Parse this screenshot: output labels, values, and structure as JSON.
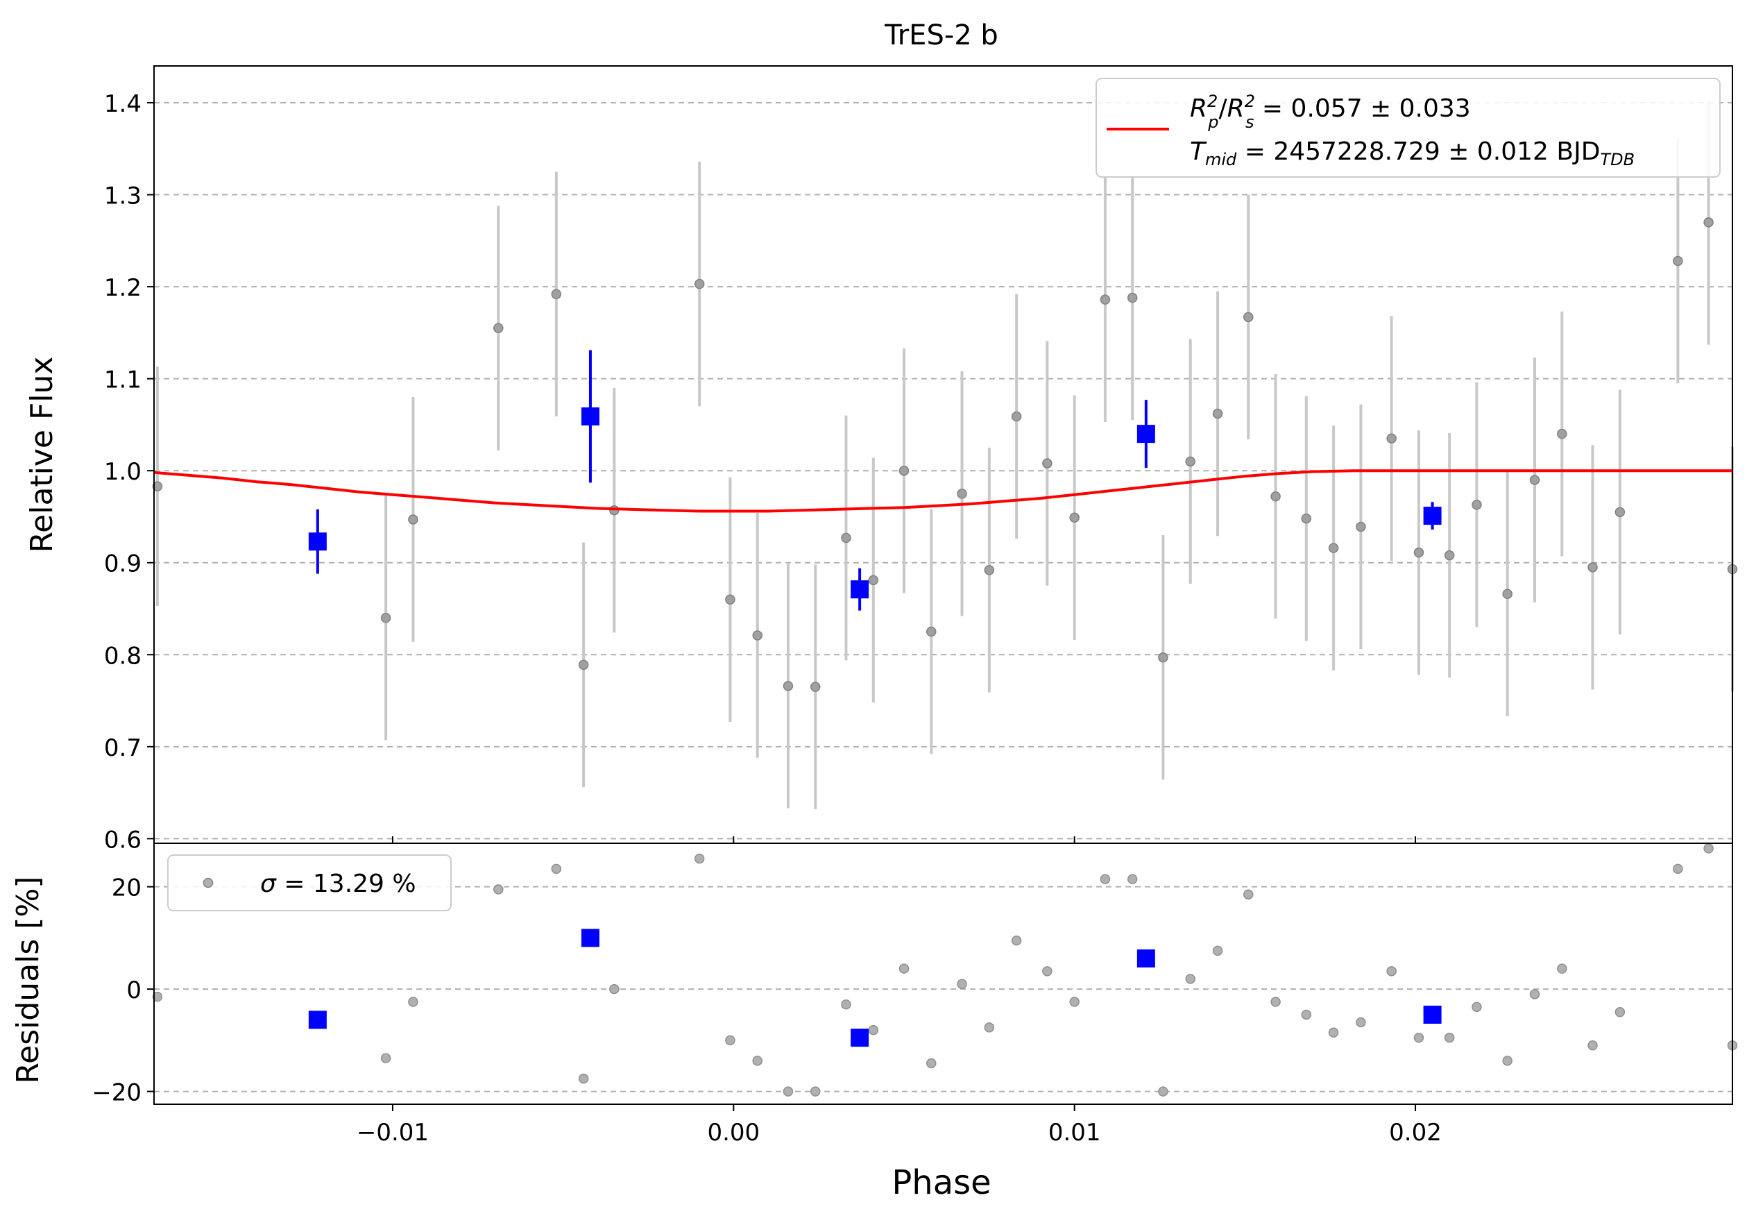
{
  "chart_data": [
    {
      "type": "scatter",
      "panel": "main",
      "title": "TrES-2 b",
      "xlabel": "Phase",
      "ylabel": "Relative Flux",
      "xlim": [
        -0.017,
        0.0293
      ],
      "ylim": [
        0.595,
        1.44
      ],
      "xticks": [
        -0.01,
        0.0,
        0.01,
        0.02
      ],
      "xtick_labels": [
        "−0.01",
        "0.00",
        "0.01",
        "0.02"
      ],
      "yticks": [
        0.6,
        0.7,
        0.8,
        0.9,
        1.0,
        1.1,
        1.2,
        1.3,
        1.4
      ],
      "ytick_labels": [
        "0.6",
        "0.7",
        "0.8",
        "0.9",
        "1.0",
        "1.1",
        "1.2",
        "1.3",
        "1.4"
      ],
      "grid": "horizontal dashed",
      "legend_position": "top-right",
      "legend": {
        "line1_html": "<tspan font-style=\"italic\">R</tspan><tspan font-style=\"italic\" font-size=\"24\" dy=\"-14\">2</tspan><tspan font-style=\"italic\" font-size=\"24\" dx=\"-14\" dy=\"30\">p</tspan><tspan dy=\"-16\">/</tspan><tspan font-style=\"italic\">R</tspan><tspan font-style=\"italic\" font-size=\"24\" dy=\"-14\">2</tspan><tspan font-style=\"italic\" font-size=\"24\" dx=\"-14\" dy=\"30\">s</tspan><tspan dy=\"-16\"> = 0.057 ± 0.033</tspan>",
        "line2_html": "<tspan font-style=\"italic\">T</tspan><tspan font-style=\"italic\" font-size=\"24\" dy=\"8\">mid</tspan><tspan dy=\"-8\"> = 2457228.729 ± 0.012 BJD</tspan><tspan font-style=\"italic\" font-size=\"24\" dy=\"8\">TDB</tspan>"
      },
      "colors": {
        "data": "#808080",
        "errorbar": "#c8c8c8",
        "binned": "#0000ff",
        "model": "#ff0000"
      },
      "raw_points": [
        {
          "x": -0.0169,
          "y": 0.983,
          "err": 0.13
        },
        {
          "x": -0.0102,
          "y": 0.84,
          "err": 0.133
        },
        {
          "x": -0.0094,
          "y": 0.947,
          "err": 0.133
        },
        {
          "x": -0.0069,
          "y": 1.155,
          "err": 0.133
        },
        {
          "x": -0.0052,
          "y": 1.192,
          "err": 0.133
        },
        {
          "x": -0.0044,
          "y": 0.789,
          "err": 0.133
        },
        {
          "x": -0.0035,
          "y": 0.957,
          "err": 0.133
        },
        {
          "x": -0.001,
          "y": 1.203,
          "err": 0.133
        },
        {
          "x": -0.0001,
          "y": 0.86,
          "err": 0.133
        },
        {
          "x": 0.0007,
          "y": 0.821,
          "err": 0.133
        },
        {
          "x": 0.0016,
          "y": 0.766,
          "err": 0.133
        },
        {
          "x": 0.0024,
          "y": 0.765,
          "err": 0.133
        },
        {
          "x": 0.0033,
          "y": 0.927,
          "err": 0.133
        },
        {
          "x": 0.0041,
          "y": 0.881,
          "err": 0.133
        },
        {
          "x": 0.005,
          "y": 1.0,
          "err": 0.133
        },
        {
          "x": 0.0058,
          "y": 0.825,
          "err": 0.133
        },
        {
          "x": 0.0067,
          "y": 0.975,
          "err": 0.133
        },
        {
          "x": 0.0075,
          "y": 0.892,
          "err": 0.133
        },
        {
          "x": 0.0083,
          "y": 1.059,
          "err": 0.133
        },
        {
          "x": 0.0092,
          "y": 1.008,
          "err": 0.133
        },
        {
          "x": 0.01,
          "y": 0.949,
          "err": 0.133
        },
        {
          "x": 0.0109,
          "y": 1.186,
          "err": 0.133
        },
        {
          "x": 0.0117,
          "y": 1.188,
          "err": 0.133
        },
        {
          "x": 0.0126,
          "y": 0.797,
          "err": 0.133
        },
        {
          "x": 0.0134,
          "y": 1.01,
          "err": 0.133
        },
        {
          "x": 0.0142,
          "y": 1.062,
          "err": 0.133
        },
        {
          "x": 0.0151,
          "y": 1.167,
          "err": 0.133
        },
        {
          "x": 0.0159,
          "y": 0.972,
          "err": 0.133
        },
        {
          "x": 0.0168,
          "y": 0.948,
          "err": 0.133
        },
        {
          "x": 0.0176,
          "y": 0.916,
          "err": 0.133
        },
        {
          "x": 0.0184,
          "y": 0.939,
          "err": 0.133
        },
        {
          "x": 0.0193,
          "y": 1.035,
          "err": 0.133
        },
        {
          "x": 0.0201,
          "y": 0.911,
          "err": 0.133
        },
        {
          "x": 0.021,
          "y": 0.908,
          "err": 0.133
        },
        {
          "x": 0.0218,
          "y": 0.963,
          "err": 0.133
        },
        {
          "x": 0.0227,
          "y": 0.866,
          "err": 0.133
        },
        {
          "x": 0.0235,
          "y": 0.99,
          "err": 0.133
        },
        {
          "x": 0.0243,
          "y": 1.04,
          "err": 0.133
        },
        {
          "x": 0.0252,
          "y": 0.895,
          "err": 0.133
        },
        {
          "x": 0.026,
          "y": 0.955,
          "err": 0.133
        },
        {
          "x": 0.0277,
          "y": 1.228,
          "err": 0.133
        },
        {
          "x": 0.0286,
          "y": 1.27,
          "err": 0.133
        },
        {
          "x": 0.0293,
          "y": 0.893,
          "err": 0.133
        }
      ],
      "binned_points": [
        {
          "x": -0.0122,
          "y": 0.923,
          "err": 0.035
        },
        {
          "x": -0.0042,
          "y": 1.059,
          "err": 0.072
        },
        {
          "x": 0.0037,
          "y": 0.871,
          "err": 0.023
        },
        {
          "x": 0.0121,
          "y": 1.04,
          "err": 0.037
        },
        {
          "x": 0.0205,
          "y": 0.951,
          "err": 0.015
        }
      ],
      "model_curve": {
        "x": [
          -0.017,
          -0.016,
          -0.015,
          -0.014,
          -0.013,
          -0.012,
          -0.011,
          -0.01,
          -0.009,
          -0.008,
          -0.007,
          -0.006,
          -0.005,
          -0.004,
          -0.003,
          -0.002,
          -0.001,
          0.0,
          0.001,
          0.002,
          0.003,
          0.004,
          0.005,
          0.006,
          0.007,
          0.008,
          0.009,
          0.01,
          0.011,
          0.012,
          0.013,
          0.014,
          0.015,
          0.016,
          0.017,
          0.0182,
          0.019,
          0.02,
          0.022,
          0.024,
          0.026,
          0.028,
          0.0293
        ],
        "y": [
          0.998,
          0.995,
          0.992,
          0.988,
          0.985,
          0.981,
          0.977,
          0.974,
          0.971,
          0.968,
          0.965,
          0.963,
          0.961,
          0.959,
          0.958,
          0.957,
          0.956,
          0.956,
          0.956,
          0.957,
          0.958,
          0.959,
          0.96,
          0.962,
          0.964,
          0.967,
          0.97,
          0.974,
          0.978,
          0.982,
          0.986,
          0.99,
          0.994,
          0.997,
          0.999,
          1.0,
          1.0,
          1.0,
          1.0,
          1.0,
          1.0,
          1.0,
          1.0
        ]
      }
    },
    {
      "type": "scatter",
      "panel": "residuals",
      "xlabel": "Phase",
      "ylabel": "Residuals [%]",
      "xlim": [
        -0.017,
        0.0293
      ],
      "ylim": [
        -22.5,
        28.5
      ],
      "yticks": [
        -20,
        0,
        20
      ],
      "ytick_labels": [
        "−20",
        "0",
        "20"
      ],
      "grid": "horizontal dashed",
      "legend_position": "top-left",
      "legend": {
        "label_html": "<tspan font-style=\"italic\">σ</tspan><tspan> = 13.29 %</tspan>"
      },
      "raw_points": [
        {
          "x": -0.0169,
          "y": -1.5
        },
        {
          "x": -0.0102,
          "y": -13.5
        },
        {
          "x": -0.0094,
          "y": -2.5
        },
        {
          "x": -0.0069,
          "y": 19.5
        },
        {
          "x": -0.0052,
          "y": 23.5
        },
        {
          "x": -0.0044,
          "y": -17.5
        },
        {
          "x": -0.0035,
          "y": 0.0
        },
        {
          "x": -0.001,
          "y": 25.5
        },
        {
          "x": -0.0001,
          "y": -10.0
        },
        {
          "x": 0.0007,
          "y": -14.0
        },
        {
          "x": 0.0016,
          "y": -20.0
        },
        {
          "x": 0.0024,
          "y": -20.0
        },
        {
          "x": 0.0033,
          "y": -3.0
        },
        {
          "x": 0.0041,
          "y": -8.0
        },
        {
          "x": 0.005,
          "y": 4.0
        },
        {
          "x": 0.0058,
          "y": -14.5
        },
        {
          "x": 0.0067,
          "y": 1.0
        },
        {
          "x": 0.0075,
          "y": -7.5
        },
        {
          "x": 0.0083,
          "y": 9.5
        },
        {
          "x": 0.0092,
          "y": 3.5
        },
        {
          "x": 0.01,
          "y": -2.5
        },
        {
          "x": 0.0109,
          "y": 21.5
        },
        {
          "x": 0.0117,
          "y": 21.5
        },
        {
          "x": 0.0126,
          "y": -20.0
        },
        {
          "x": 0.0134,
          "y": 2.0
        },
        {
          "x": 0.0142,
          "y": 7.5
        },
        {
          "x": 0.0151,
          "y": 18.5
        },
        {
          "x": 0.0159,
          "y": -2.5
        },
        {
          "x": 0.0168,
          "y": -5.0
        },
        {
          "x": 0.0176,
          "y": -8.5
        },
        {
          "x": 0.0184,
          "y": -6.5
        },
        {
          "x": 0.0193,
          "y": 3.5
        },
        {
          "x": 0.0201,
          "y": -9.5
        },
        {
          "x": 0.021,
          "y": -9.5
        },
        {
          "x": 0.0218,
          "y": -3.5
        },
        {
          "x": 0.0227,
          "y": -14.0
        },
        {
          "x": 0.0235,
          "y": -1.0
        },
        {
          "x": 0.0243,
          "y": 4.0
        },
        {
          "x": 0.0252,
          "y": -11.0
        },
        {
          "x": 0.026,
          "y": -4.5
        },
        {
          "x": 0.0277,
          "y": 23.5
        },
        {
          "x": 0.0286,
          "y": 27.5
        },
        {
          "x": 0.0293,
          "y": -11.0
        }
      ],
      "binned_points": [
        {
          "x": -0.0122,
          "y": -6.0
        },
        {
          "x": -0.0042,
          "y": 10.0
        },
        {
          "x": 0.0037,
          "y": -9.5
        },
        {
          "x": 0.0121,
          "y": 6.0
        },
        {
          "x": 0.0205,
          "y": -5.0
        }
      ]
    }
  ]
}
